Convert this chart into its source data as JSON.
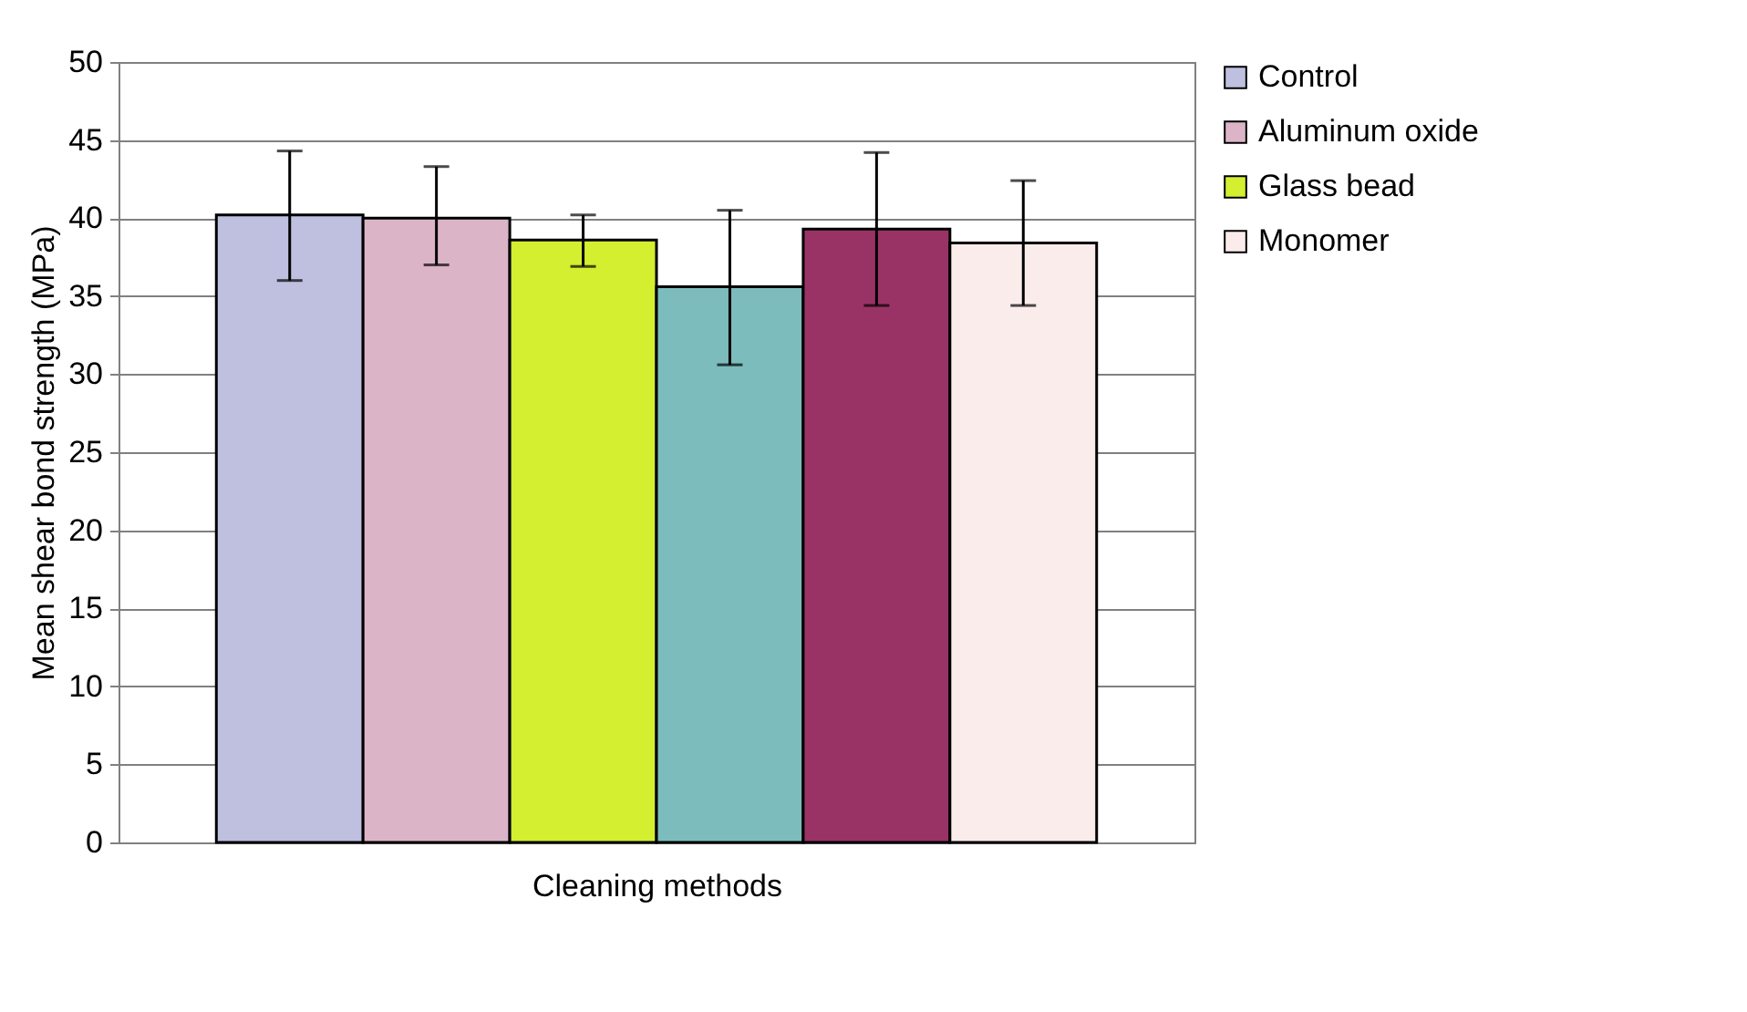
{
  "chart_data": {
    "type": "bar",
    "xlabel": "Cleaning methods",
    "ylabel": "Mean shear bond strength (MPa)",
    "categories": [
      null
    ],
    "series": [
      {
        "name": "Control",
        "color": "#bfc0e0",
        "values": [
          40.2
        ],
        "errors": [
          [
            36.0,
            44.3
          ]
        ]
      },
      {
        "name": "Aluminum oxide",
        "color": "#dcb4c8",
        "values": [
          40.0
        ],
        "errors": [
          [
            37.0,
            43.3
          ]
        ]
      },
      {
        "name": "Glass bead",
        "color": "#d4ee30",
        "values": [
          38.6
        ],
        "errors": [
          [
            36.9,
            40.2
          ]
        ]
      },
      {
        "color": "#7dbcbc",
        "values": [
          35.6
        ],
        "errors": [
          [
            30.6,
            40.5
          ]
        ]
      },
      {
        "color": "#993366",
        "values": [
          39.3
        ],
        "errors": [
          [
            34.4,
            44.2
          ]
        ]
      },
      {
        "name": "Monomer",
        "color": "#fbecec",
        "values": [
          38.4
        ],
        "errors": [
          [
            34.4,
            42.4
          ]
        ]
      }
    ],
    "ylim": [
      0,
      50
    ],
    "yticks": [
      0,
      5,
      10,
      15,
      20,
      25,
      30,
      35,
      40,
      45,
      50
    ],
    "grid": "y",
    "legend": "right"
  }
}
